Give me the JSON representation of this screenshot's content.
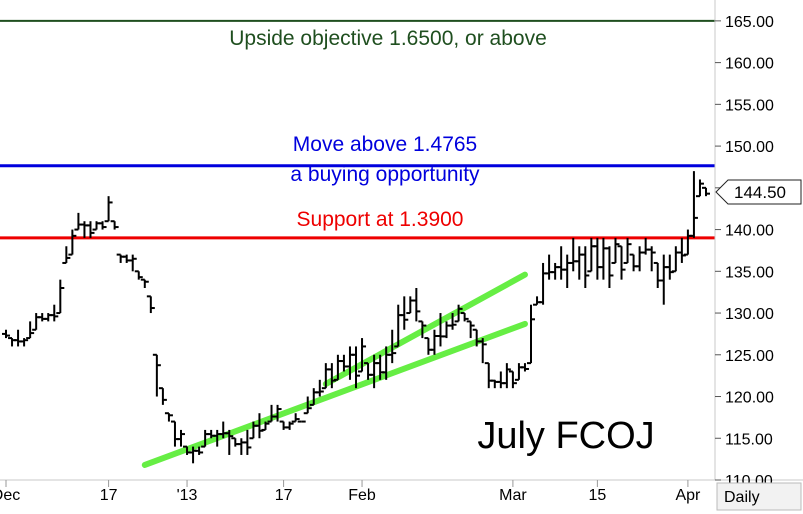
{
  "chart_data": {
    "type": "bar",
    "title": "July FCOJ",
    "ylim": [
      110,
      167.5
    ],
    "y_ticks": [
      "165.00",
      "160.00",
      "155.00",
      "150.00",
      "145.00",
      "140.00",
      "135.00",
      "130.00",
      "125.00",
      "120.00",
      "115.00",
      "110.00"
    ],
    "x_tick_labels": [
      "Dec",
      "17",
      "'13",
      "17",
      "Feb",
      "Mar",
      "15",
      "Apr"
    ],
    "periodicity_label": "Daily",
    "last_price_label": "144.50",
    "last_price": 144.5,
    "horizontal_lines": [
      {
        "name": "upside-objective-line",
        "value": 165.0,
        "color": "#1f4f1f",
        "label": "Upside objective 1.6500, or above"
      },
      {
        "name": "breakout-line",
        "value": 147.65,
        "color": "#0000dd",
        "label": "Move above 1.4765",
        "label2": "a buying opportunity"
      },
      {
        "name": "support-line",
        "value": 139.0,
        "color": "#ee0000",
        "label": "Support at 1.3900"
      }
    ],
    "trendlines": [
      {
        "name": "trendline-lower",
        "color": "#66ee44",
        "start": {
          "i": 23,
          "v": 111.8
        },
        "end": {
          "i": 86,
          "v": 128.7
        }
      },
      {
        "name": "trendline-upper",
        "color": "#66ee44",
        "start": {
          "i": 53,
          "v": 121.5
        },
        "end": {
          "i": 86,
          "v": 134.6
        }
      }
    ],
    "series": [
      {
        "values": [
          [
            128,
            127
          ],
          [
            127,
            126
          ],
          [
            128,
            126
          ],
          [
            127,
            126
          ],
          [
            129,
            127
          ],
          [
            130,
            128
          ],
          [
            130,
            129
          ],
          [
            130,
            129
          ],
          [
            131,
            129
          ],
          [
            134,
            130
          ],
          [
            138,
            136
          ],
          [
            140,
            137
          ],
          [
            142,
            140
          ],
          [
            141,
            139
          ],
          [
            141,
            139
          ],
          [
            141,
            140
          ],
          [
            141,
            140
          ],
          [
            144,
            141
          ],
          [
            141,
            140
          ],
          [
            137,
            136
          ],
          [
            137,
            136
          ],
          [
            137,
            135
          ],
          [
            135,
            134
          ],
          [
            134,
            133
          ],
          [
            132,
            130
          ],
          [
            125,
            120
          ],
          [
            121,
            119
          ],
          [
            118,
            117
          ],
          [
            117,
            114
          ],
          [
            116,
            114
          ],
          [
            114,
            113
          ],
          [
            114,
            112
          ],
          [
            114,
            113
          ],
          [
            116,
            114
          ],
          [
            116,
            115
          ],
          [
            116,
            114
          ],
          [
            117,
            115
          ],
          [
            116,
            113
          ],
          [
            115,
            114
          ],
          [
            115,
            113
          ],
          [
            116,
            113
          ],
          [
            117,
            115
          ],
          [
            118,
            115
          ],
          [
            117,
            116
          ],
          [
            119,
            117
          ],
          [
            119,
            117
          ],
          [
            117,
            116
          ],
          [
            117,
            116
          ],
          [
            118,
            117
          ],
          [
            117,
            117
          ],
          [
            120,
            118
          ],
          [
            121,
            119
          ],
          [
            122,
            120
          ],
          [
            124,
            121
          ],
          [
            124,
            121
          ],
          [
            125,
            122
          ],
          [
            125,
            123
          ],
          [
            126,
            122
          ],
          [
            126,
            121
          ],
          [
            127,
            123
          ],
          [
            124,
            122
          ],
          [
            125,
            121
          ],
          [
            125,
            122
          ],
          [
            126,
            122
          ],
          [
            128,
            124
          ],
          [
            131,
            126
          ],
          [
            132,
            128
          ],
          [
            132,
            130
          ],
          [
            133,
            129
          ],
          [
            129,
            127
          ],
          [
            127,
            125
          ],
          [
            128,
            125
          ],
          [
            130,
            126
          ],
          [
            129,
            127
          ],
          [
            130,
            128
          ],
          [
            131,
            129
          ],
          [
            130,
            129
          ],
          [
            129,
            127
          ],
          [
            128,
            126
          ],
          [
            127,
            124
          ],
          [
            124,
            121
          ],
          [
            122,
            121
          ],
          [
            123,
            121
          ],
          [
            124,
            121
          ],
          [
            123,
            121
          ],
          [
            124,
            122
          ],
          [
            124,
            123
          ],
          [
            131,
            124
          ],
          [
            132,
            131
          ],
          [
            136,
            131
          ]
        ]
      },
      {
        "values": [
          [
            137,
            134
          ],
          [
            136,
            134
          ],
          [
            138,
            134
          ],
          [
            137,
            133
          ],
          [
            139,
            135
          ],
          [
            138,
            134
          ],
          [
            138,
            133
          ],
          [
            139,
            135
          ],
          [
            139,
            134
          ],
          [
            139,
            134
          ],
          [
            138,
            133
          ],
          [
            139,
            136
          ],
          [
            138,
            134
          ],
          [
            139,
            136
          ],
          [
            137,
            135
          ],
          [
            138,
            135
          ],
          [
            139,
            137
          ],
          [
            138,
            135
          ],
          [
            136,
            133
          ],
          [
            137,
            131
          ],
          [
            137,
            134
          ],
          [
            138,
            135
          ],
          [
            139,
            136
          ],
          [
            140,
            137
          ],
          [
            147,
            139
          ],
          [
            146,
            144
          ],
          [
            145,
            144
          ]
        ]
      }
    ]
  }
}
